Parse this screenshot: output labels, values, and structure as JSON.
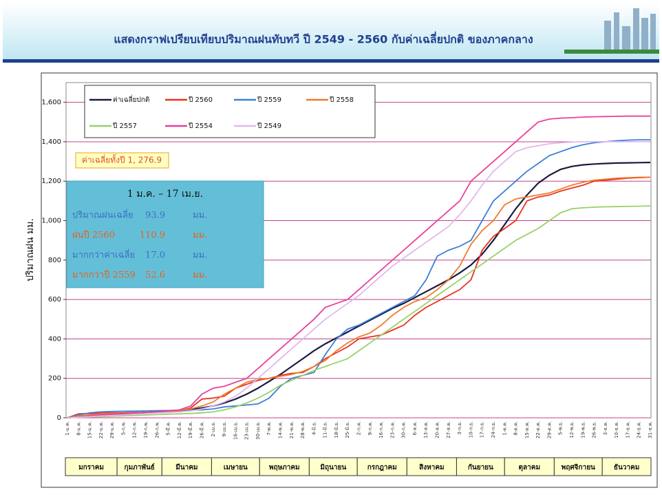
{
  "chart_data": {
    "type": "line",
    "title": "แสดงกราฟเปรียบเทียบปริมาณฝนทับทวี ปี 2549 - 2560 กับค่าเฉลี่ยปกติ ของภาคกลาง",
    "y_label": "ปริมาณฝน มม.",
    "categories": [
      "1-ม.ค.",
      "8-ม.ค.",
      "15-ม.ค.",
      "22-ม.ค.",
      "29-ม.ค.",
      "5-ก.พ.",
      "12-ก.พ.",
      "19-ก.พ.",
      "26-ก.พ.",
      "5-มี.ค.",
      "12-มี.ค.",
      "19-มี.ค.",
      "26-มี.ค.",
      "2-เม.ย.",
      "9-เม.ย.",
      "16-เม.ย.",
      "23-เม.ย.",
      "30-เม.ย.",
      "7-พ.ค.",
      "14-พ.ค.",
      "21-พ.ค.",
      "28-พ.ค.",
      "4-มิ.ย.",
      "11-มิ.ย.",
      "18-มิ.ย.",
      "25-มิ.ย.",
      "2-ก.ค.",
      "9-ก.ค.",
      "16-ก.ค.",
      "23-ก.ค.",
      "30-ก.ค.",
      "6-ส.ค.",
      "13-ส.ค.",
      "20-ส.ค.",
      "27-ส.ค.",
      "3-ก.ย.",
      "10-ก.ย.",
      "17-ก.ย.",
      "24-ก.ย.",
      "1-ต.ค.",
      "8-ต.ค.",
      "15-ต.ค.",
      "22-ต.ค.",
      "29-ต.ค.",
      "5-พ.ย.",
      "12-พ.ย.",
      "19-พ.ย.",
      "26-พ.ย.",
      "3-ธ.ค.",
      "10-ธ.ค.",
      "17-ธ.ค.",
      "24-ธ.ค.",
      "31-ธ.ค."
    ],
    "series": [
      {
        "name": "ค่าเฉลี่ยปกติ",
        "color": "#1a1a40",
        "values": [
          0,
          5,
          10,
          14,
          18,
          21,
          24,
          27,
          30,
          33,
          36,
          42,
          50,
          60,
          75,
          95,
          120,
          150,
          185,
          220,
          260,
          300,
          340,
          375,
          405,
          435,
          465,
          495,
          525,
          555,
          580,
          610,
          640,
          670,
          700,
          735,
          775,
          830,
          900,
          980,
          1060,
          1130,
          1190,
          1230,
          1260,
          1275,
          1283,
          1287,
          1290,
          1292,
          1293,
          1294,
          1295
        ]
      },
      {
        "name": "ปี 2560",
        "color": "#e8321e",
        "values": [
          0,
          20,
          22,
          24,
          25,
          26,
          27,
          28,
          30,
          32,
          36,
          50,
          95,
          100,
          110,
          150,
          170,
          190,
          200,
          215,
          225,
          230,
          260,
          300,
          330,
          360,
          400,
          410,
          420,
          445,
          470,
          520,
          560,
          590,
          620,
          650,
          700,
          850,
          920,
          960,
          1000,
          1100,
          1120,
          1130,
          1150,
          1165,
          1180,
          1200,
          1205,
          1210,
          1215,
          1218,
          1220
        ]
      },
      {
        "name": "ปี 2559",
        "color": "#3a7fd8",
        "values": [
          0,
          15,
          25,
          30,
          32,
          33,
          34,
          35,
          36,
          37,
          38,
          39,
          40,
          45,
          55,
          60,
          65,
          70,
          100,
          160,
          200,
          215,
          230,
          320,
          400,
          450,
          470,
          500,
          530,
          560,
          590,
          620,
          700,
          820,
          850,
          870,
          900,
          1000,
          1100,
          1150,
          1200,
          1250,
          1290,
          1330,
          1350,
          1370,
          1385,
          1395,
          1400,
          1405,
          1408,
          1410,
          1410
        ]
      },
      {
        "name": "ปี 2558",
        "color": "#f07a2a",
        "values": [
          0,
          10,
          15,
          20,
          22,
          24,
          26,
          28,
          30,
          33,
          38,
          45,
          60,
          80,
          120,
          150,
          180,
          195,
          200,
          210,
          220,
          235,
          260,
          290,
          340,
          380,
          410,
          430,
          470,
          520,
          560,
          590,
          610,
          650,
          700,
          770,
          880,
          950,
          1000,
          1080,
          1110,
          1120,
          1130,
          1140,
          1160,
          1180,
          1195,
          1205,
          1210,
          1215,
          1218,
          1220,
          1220
        ]
      },
      {
        "name": "ปี 2557",
        "color": "#9ad06a",
        "values": [
          0,
          2,
          4,
          6,
          8,
          10,
          12,
          14,
          16,
          18,
          20,
          22,
          25,
          30,
          40,
          55,
          75,
          100,
          130,
          165,
          190,
          215,
          240,
          260,
          280,
          300,
          340,
          380,
          420,
          460,
          500,
          540,
          580,
          620,
          660,
          700,
          740,
          780,
          820,
          860,
          900,
          930,
          960,
          1000,
          1040,
          1060,
          1065,
          1068,
          1070,
          1071,
          1072,
          1073,
          1075
        ]
      },
      {
        "name": "ปี 2554",
        "color": "#e8409a",
        "values": [
          0,
          5,
          10,
          15,
          18,
          22,
          25,
          28,
          30,
          35,
          40,
          60,
          120,
          150,
          160,
          180,
          200,
          250,
          300,
          350,
          400,
          450,
          500,
          560,
          580,
          600,
          650,
          700,
          750,
          800,
          850,
          900,
          950,
          1000,
          1050,
          1100,
          1200,
          1250,
          1300,
          1350,
          1400,
          1450,
          1500,
          1515,
          1520,
          1522,
          1525,
          1527,
          1528,
          1529,
          1530,
          1530,
          1530
        ]
      },
      {
        "name": "ปี 2549",
        "color": "#e0b8ec",
        "values": [
          0,
          3,
          6,
          9,
          12,
          15,
          18,
          21,
          24,
          27,
          30,
          35,
          45,
          60,
          80,
          110,
          150,
          200,
          250,
          300,
          350,
          400,
          450,
          500,
          540,
          580,
          620,
          670,
          720,
          770,
          810,
          850,
          890,
          930,
          970,
          1030,
          1100,
          1180,
          1250,
          1300,
          1350,
          1370,
          1380,
          1390,
          1395,
          1398,
          1400,
          1400,
          1400,
          1400,
          1400,
          1400,
          1400
        ]
      }
    ],
    "ylim": [
      0,
      1700
    ],
    "yticks": [
      0,
      200,
      400,
      600,
      800,
      {
        "value": 1000,
        "label": "1,000"
      },
      {
        "value": 1200,
        "label": "1,200"
      },
      {
        "value": 1400,
        "label": "1,400"
      },
      {
        "value": 1600,
        "label": "1,600"
      }
    ],
    "grid": true,
    "grid_color": "#c0408a",
    "annotation": "ค่าเฉลี่ยทั้งปี 1, 276.9",
    "info_box": {
      "title": "1 ม.ค. – 17 เม.ย.",
      "rows": [
        [
          "ปริมาณฝนเฉลี่ย",
          "93.9",
          "มม."
        ],
        [
          "ฝนปี 2560",
          "110.9",
          "มม."
        ],
        [
          "มากกว่าค่าเฉลี่ย",
          "17.0",
          "มม."
        ],
        [
          "มากกว่าปี 2559",
          "52.6",
          "มม."
        ]
      ]
    },
    "months": [
      "มกราคม",
      "กุมภาพันธ์",
      "มีนาคม",
      "เมษายน",
      "พฤษภาคม",
      "มิถุนายน",
      "กรกฎาคม",
      "สิงหาคม",
      "กันยายน",
      "ตุลาคม",
      "พฤศจิกายน",
      "ธันวาคม"
    ]
  }
}
